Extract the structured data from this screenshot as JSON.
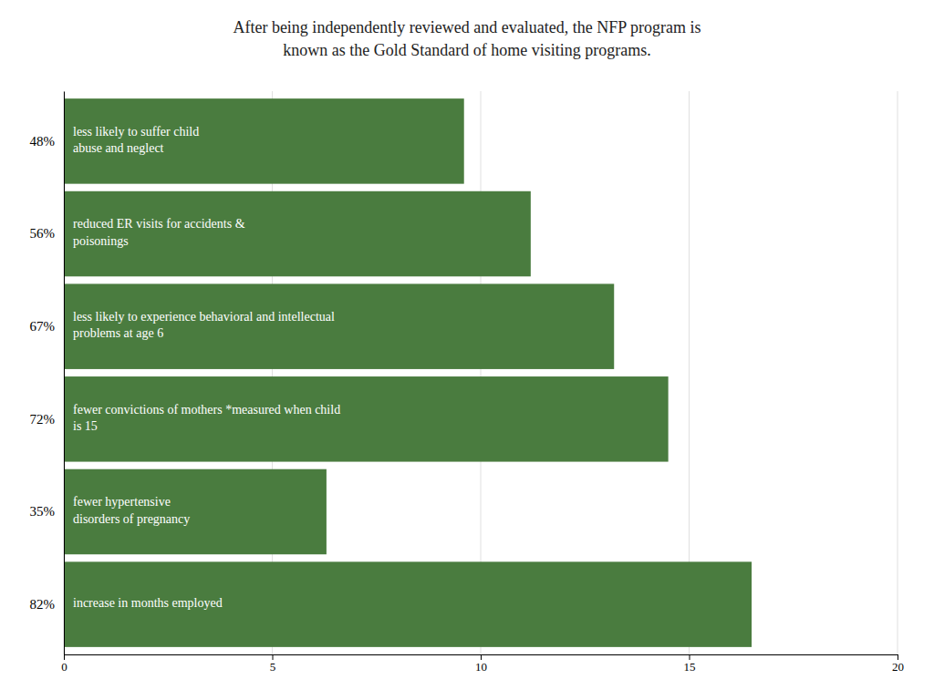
{
  "chart_data": {
    "type": "bar",
    "orientation": "horizontal",
    "title": "After being independently reviewed and evaluated, the NFP program is\nknown as the Gold Standard of home visiting programs.",
    "categories": [
      "48%",
      "56%",
      "67%",
      "72%",
      "35%",
      "82%"
    ],
    "values": [
      9.6,
      11.2,
      13.2,
      14.5,
      6.3,
      16.5
    ],
    "annotations": [
      "less likely to suffer child\nabuse and neglect",
      "reduced ER visits for accidents &\npoisonings",
      "less likely to experience behavioral and intellectual\nproblems at age 6",
      "fewer convictions of mothers *measured when child\nis 15",
      "fewer hypertensive\ndisorders of pregnancy",
      "increase in months employed"
    ],
    "color": "#4a7c3f",
    "xlim": [
      0,
      20
    ],
    "xticks": [
      0,
      5,
      10,
      15,
      20
    ],
    "grid": true
  }
}
